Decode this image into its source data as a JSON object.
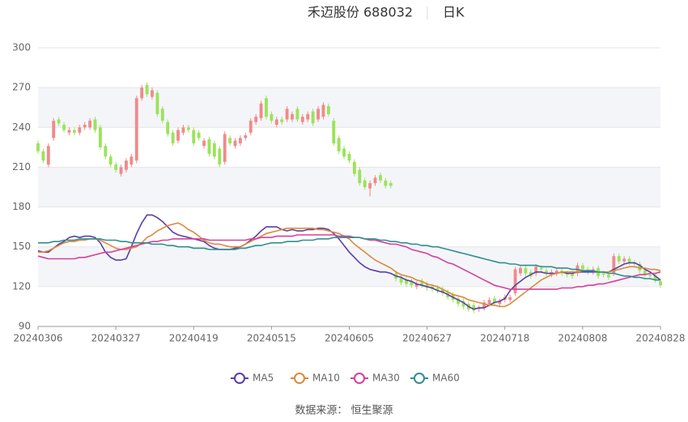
{
  "chart_data": {
    "type": "candlestick",
    "title": "禾迈股份 688032",
    "period": "日K",
    "source": "数据来源： 恒生聚源",
    "categories": [
      "20240306",
      null,
      null,
      null,
      null,
      null,
      null,
      null,
      null,
      null,
      null,
      null,
      null,
      null,
      null,
      "20240327",
      null,
      null,
      null,
      null,
      null,
      null,
      null,
      null,
      null,
      null,
      null,
      null,
      null,
      null,
      "20240419",
      null,
      null,
      null,
      null,
      null,
      null,
      null,
      null,
      null,
      null,
      null,
      null,
      null,
      null,
      "20240515",
      null,
      null,
      null,
      null,
      null,
      null,
      null,
      null,
      null,
      null,
      null,
      null,
      null,
      null,
      "20240605",
      null,
      null,
      null,
      null,
      null,
      null,
      null,
      null,
      null,
      null,
      null,
      null,
      null,
      null,
      "20240627",
      null,
      null,
      null,
      null,
      null,
      null,
      null,
      null,
      null,
      null,
      null,
      null,
      null,
      null,
      "20240718",
      null,
      null,
      null,
      null,
      null,
      null,
      null,
      null,
      null,
      null,
      null,
      null,
      null,
      null,
      "20240808",
      null,
      null,
      null,
      null,
      null,
      null,
      null,
      null,
      null,
      null,
      null,
      null,
      null,
      null,
      "20240828"
    ],
    "open": [
      228,
      222,
      212,
      232,
      246,
      242,
      236,
      238,
      236,
      240,
      240,
      246,
      240,
      226,
      218,
      212,
      205,
      208,
      212,
      215,
      262,
      272,
      263,
      266,
      254,
      244,
      236,
      230,
      236,
      240,
      238,
      236,
      226,
      231,
      228,
      224,
      214,
      232,
      226,
      228,
      232,
      236,
      244,
      247,
      262,
      250,
      242,
      246,
      246,
      246,
      254,
      244,
      246,
      252,
      246,
      248,
      256,
      245,
      232,
      224,
      220,
      214,
      208,
      200,
      194,
      198,
      204,
      200,
      198,
      130,
      127,
      125,
      124,
      120,
      124,
      122,
      120,
      119,
      118,
      116,
      114,
      111,
      109,
      107,
      106,
      103,
      104,
      107,
      111,
      107,
      110,
      110,
      115,
      130,
      134,
      131,
      130,
      134,
      132,
      129,
      130,
      132,
      130,
      130,
      130,
      136,
      133,
      131,
      134,
      130,
      129,
      130,
      143,
      139,
      141,
      138,
      137,
      132,
      129,
      128,
      124
    ],
    "close": [
      222,
      215,
      226,
      245,
      243,
      238,
      238,
      236,
      240,
      242,
      245,
      238,
      225,
      218,
      212,
      208,
      210,
      215,
      218,
      262,
      270,
      265,
      268,
      250,
      245,
      235,
      228,
      238,
      240,
      238,
      228,
      232,
      230,
      220,
      218,
      212,
      235,
      228,
      230,
      232,
      234,
      245,
      248,
      258,
      248,
      245,
      246,
      244,
      254,
      250,
      246,
      248,
      250,
      243,
      254,
      257,
      250,
      228,
      222,
      218,
      215,
      205,
      198,
      195,
      198,
      202,
      200,
      196,
      196,
      126,
      123,
      122,
      121,
      122,
      121,
      119,
      118,
      117,
      115,
      112,
      110,
      107,
      105,
      103,
      102,
      104,
      108,
      110,
      108,
      109,
      112,
      112,
      133,
      134,
      130,
      128,
      135,
      133,
      130,
      131,
      132,
      130,
      129,
      128,
      136,
      133,
      131,
      133,
      128,
      129,
      127,
      143,
      139,
      141,
      138,
      137,
      132,
      129,
      128,
      125,
      121
    ],
    "high": [
      230,
      224,
      228,
      247,
      248,
      244,
      240,
      240,
      242,
      244,
      247,
      248,
      242,
      228,
      220,
      214,
      212,
      217,
      220,
      264,
      272,
      274,
      270,
      268,
      256,
      246,
      238,
      240,
      242,
      242,
      240,
      238,
      232,
      233,
      230,
      226,
      237,
      234,
      232,
      234,
      236,
      247,
      250,
      260,
      264,
      252,
      248,
      248,
      256,
      252,
      256,
      250,
      252,
      254,
      256,
      259,
      258,
      247,
      234,
      226,
      222,
      216,
      210,
      202,
      200,
      204,
      206,
      202,
      200,
      132,
      129,
      127,
      126,
      124,
      126,
      124,
      122,
      121,
      120,
      118,
      116,
      113,
      111,
      109,
      108,
      106,
      110,
      112,
      113,
      111,
      114,
      114,
      135,
      136,
      136,
      133,
      137,
      136,
      134,
      133,
      134,
      134,
      132,
      132,
      138,
      138,
      135,
      135,
      136,
      132,
      131,
      145,
      145,
      143,
      143,
      140,
      139,
      134,
      131,
      130,
      126
    ],
    "low": [
      220,
      213,
      210,
      230,
      241,
      236,
      234,
      234,
      234,
      238,
      238,
      236,
      223,
      216,
      210,
      206,
      203,
      206,
      210,
      213,
      260,
      263,
      261,
      248,
      243,
      233,
      226,
      228,
      234,
      236,
      226,
      230,
      224,
      218,
      216,
      210,
      212,
      226,
      224,
      226,
      230,
      234,
      242,
      245,
      246,
      243,
      240,
      242,
      244,
      244,
      244,
      242,
      244,
      241,
      244,
      246,
      248,
      226,
      220,
      216,
      213,
      203,
      196,
      193,
      188,
      196,
      198,
      194,
      194,
      124,
      121,
      120,
      119,
      118,
      119,
      117,
      116,
      115,
      113,
      110,
      108,
      105,
      103,
      101,
      100,
      101,
      102,
      105,
      106,
      105,
      108,
      108,
      113,
      128,
      128,
      126,
      128,
      131,
      128,
      127,
      128,
      128,
      127,
      126,
      128,
      131,
      129,
      129,
      126,
      127,
      125,
      128,
      137,
      137,
      136,
      135,
      130,
      127,
      126,
      123,
      119
    ],
    "up_color": "#f08a8a",
    "down_color": "#9be35a",
    "series": [
      {
        "name": "MA5",
        "color": "#5a3fa6",
        "values": [
          147,
          146,
          146,
          149,
          152,
          154,
          157,
          158,
          157,
          158,
          158,
          157,
          153,
          146,
          142,
          140,
          140,
          141,
          150,
          160,
          168,
          174,
          174,
          172,
          169,
          165,
          161,
          159,
          158,
          157,
          156,
          155,
          154,
          151,
          149,
          148,
          148,
          148,
          149,
          150,
          152,
          155,
          158,
          162,
          165,
          165,
          165,
          163,
          162,
          163,
          162,
          162,
          163,
          163,
          164,
          164,
          163,
          160,
          156,
          151,
          146,
          142,
          138,
          135,
          133,
          132,
          131,
          131,
          130,
          128,
          127,
          125,
          124,
          122,
          121,
          120,
          119,
          117,
          116,
          114,
          112,
          110,
          108,
          105,
          103,
          104,
          104,
          106,
          108,
          109,
          111,
          117,
          121,
          124,
          127,
          129,
          131,
          131,
          130,
          130,
          130,
          131,
          130,
          130,
          131,
          131,
          131,
          131,
          131,
          131,
          131,
          133,
          135,
          137,
          138,
          138,
          136,
          133,
          131,
          128,
          125
        ]
      },
      {
        "name": "MA10",
        "color": "#dc8a3c",
        "values": [
          146,
          146,
          147,
          149,
          151,
          153,
          154,
          154,
          155,
          155,
          156,
          156,
          155,
          153,
          151,
          149,
          148,
          148,
          149,
          150,
          153,
          157,
          159,
          162,
          164,
          166,
          167,
          168,
          166,
          163,
          161,
          158,
          155,
          153,
          152,
          152,
          151,
          150,
          150,
          150,
          152,
          154,
          156,
          158,
          160,
          161,
          162,
          163,
          164,
          164,
          164,
          164,
          164,
          164,
          163,
          163,
          162,
          161,
          160,
          158,
          156,
          152,
          149,
          146,
          143,
          140,
          138,
          136,
          134,
          131,
          129,
          128,
          127,
          125,
          124,
          122,
          121,
          120,
          118,
          116,
          114,
          113,
          112,
          110,
          109,
          108,
          107,
          106,
          106,
          105,
          105,
          107,
          110,
          113,
          116,
          119,
          122,
          125,
          127,
          129,
          130,
          131,
          131,
          131,
          131,
          132,
          132,
          132,
          131,
          131,
          131,
          132,
          133,
          134,
          135,
          135,
          134,
          134,
          133,
          133,
          132
        ]
      },
      {
        "name": "MA30",
        "color": "#d6409a",
        "values": [
          143,
          142,
          141,
          141,
          141,
          141,
          141,
          141,
          142,
          142,
          143,
          144,
          145,
          146,
          146,
          147,
          148,
          149,
          150,
          151,
          152,
          153,
          154,
          154,
          155,
          155,
          156,
          156,
          156,
          156,
          156,
          156,
          156,
          155,
          155,
          155,
          155,
          155,
          155,
          155,
          155,
          156,
          156,
          157,
          157,
          157,
          158,
          158,
          158,
          158,
          159,
          159,
          159,
          159,
          159,
          159,
          159,
          159,
          158,
          158,
          158,
          157,
          157,
          156,
          155,
          155,
          154,
          153,
          152,
          152,
          151,
          150,
          148,
          147,
          146,
          145,
          143,
          142,
          140,
          138,
          137,
          135,
          133,
          131,
          129,
          127,
          125,
          123,
          121,
          120,
          119,
          118,
          118,
          118,
          118,
          118,
          118,
          118,
          118,
          118,
          118,
          119,
          119,
          119,
          120,
          120,
          121,
          121,
          122,
          122,
          123,
          124,
          125,
          126,
          127,
          128,
          129,
          129,
          130,
          130,
          131
        ]
      },
      {
        "name": "MA60",
        "color": "#2f8f8f",
        "values": [
          153,
          153,
          153,
          154,
          154,
          155,
          155,
          155,
          156,
          156,
          156,
          156,
          156,
          155,
          155,
          155,
          154,
          154,
          153,
          153,
          153,
          153,
          152,
          152,
          152,
          151,
          151,
          150,
          150,
          150,
          149,
          149,
          149,
          148,
          148,
          148,
          148,
          148,
          148,
          149,
          149,
          150,
          151,
          151,
          152,
          153,
          153,
          153,
          154,
          154,
          154,
          155,
          155,
          155,
          156,
          156,
          156,
          157,
          157,
          157,
          157,
          157,
          157,
          156,
          156,
          156,
          155,
          155,
          154,
          154,
          153,
          153,
          152,
          152,
          151,
          151,
          150,
          150,
          149,
          148,
          147,
          146,
          145,
          144,
          143,
          142,
          141,
          140,
          139,
          138,
          138,
          137,
          137,
          136,
          136,
          136,
          136,
          135,
          135,
          135,
          134,
          134,
          134,
          133,
          133,
          132,
          132,
          132,
          131,
          131,
          130,
          130,
          129,
          128,
          128,
          127,
          127,
          126,
          126,
          125,
          125
        ]
      }
    ],
    "ylim": [
      90,
      300
    ],
    "yticks": [
      90,
      120,
      150,
      180,
      210,
      240,
      270,
      300
    ],
    "grid": true
  }
}
